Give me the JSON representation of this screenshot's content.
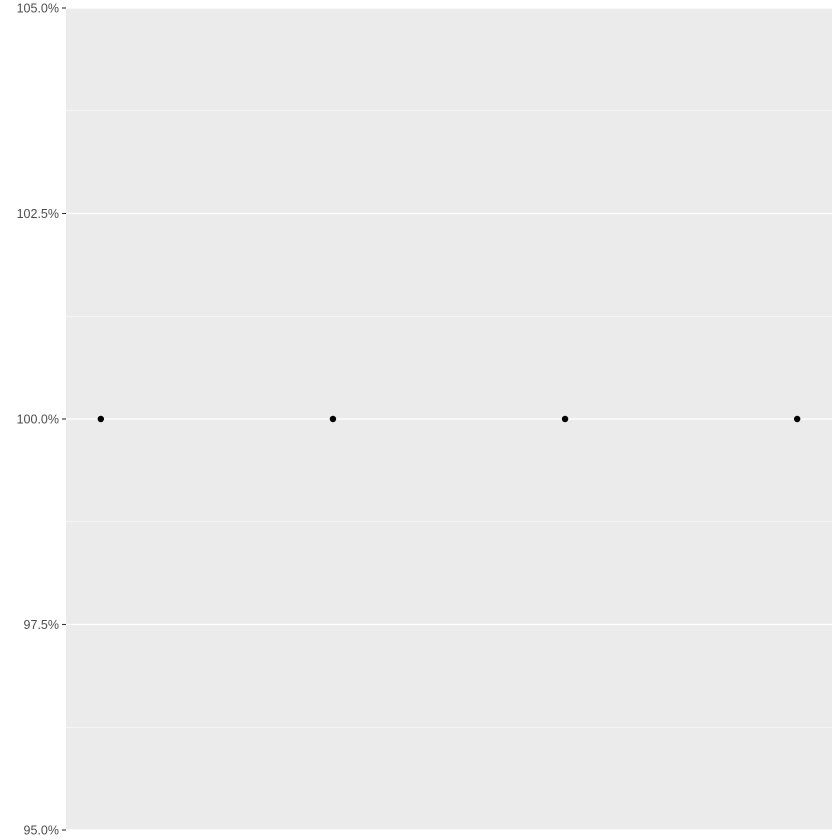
{
  "chart_data": {
    "type": "scatter",
    "title": "",
    "xlabel": "",
    "ylabel": "",
    "ylim": [
      95.0,
      105.0
    ],
    "y_ticks": [
      {
        "value": 95.0,
        "label": "95.0%"
      },
      {
        "value": 97.5,
        "label": "97.5%"
      },
      {
        "value": 100.0,
        "label": "100.0%"
      },
      {
        "value": 102.5,
        "label": "102.5%"
      },
      {
        "value": 105.0,
        "label": "105.0%"
      }
    ],
    "y_minor_gridlines": [
      96.25,
      98.75,
      101.25,
      103.75
    ],
    "x_axis_shown": false,
    "grid": true,
    "colors": {
      "panel": "#EBEBEB",
      "gridline": "#FFFFFF",
      "point": "#000000",
      "tick_label": "#4D4D4D",
      "tick_mark": "#333333"
    },
    "series": [
      {
        "x": [
          1,
          2,
          3,
          4
        ],
        "y": [
          100.0,
          100.0,
          100.0,
          100.0
        ]
      }
    ]
  }
}
